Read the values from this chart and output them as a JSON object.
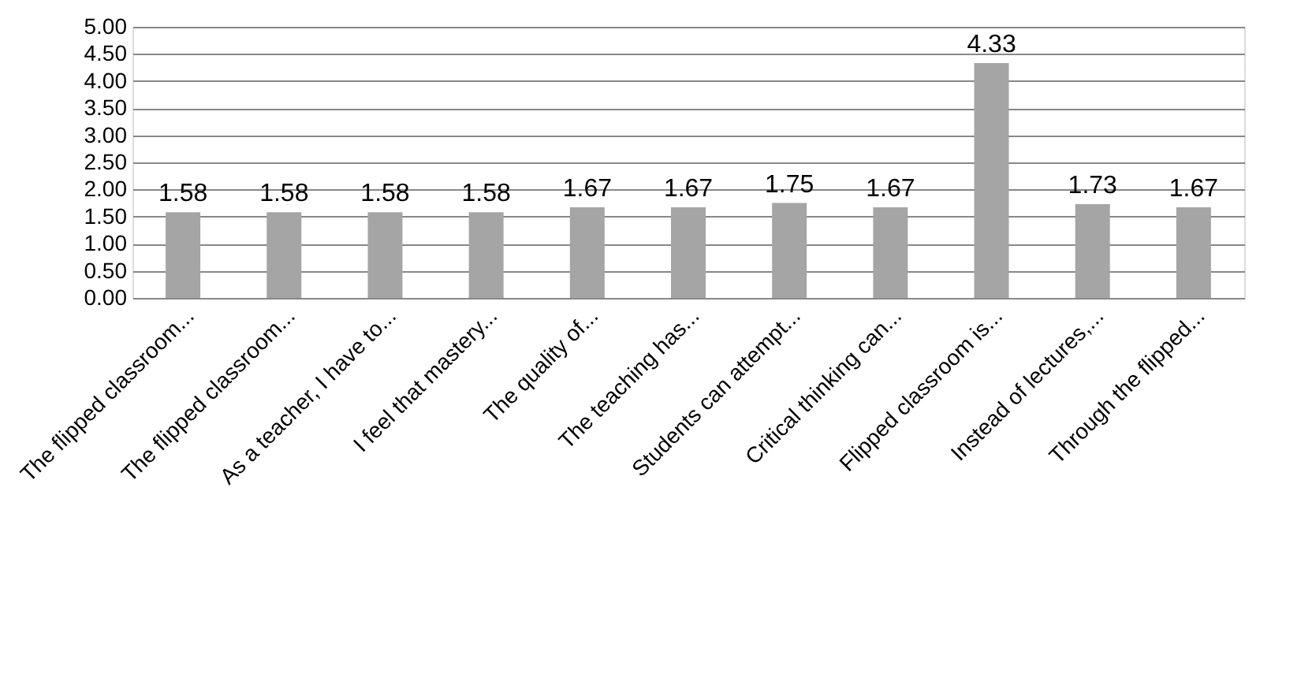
{
  "chart_data": {
    "type": "bar",
    "categories": [
      "The flipped classroom...",
      "The flipped classroom...",
      "As a teacher, I have to...",
      "I feel that mastery...",
      "The quality of...",
      "The teaching has...",
      "Students can attempt...",
      "Critical thinking can...",
      "Flipped classroom is...",
      "Instead of lectures,...",
      "Through the flipped..."
    ],
    "values": [
      1.58,
      1.58,
      1.58,
      1.58,
      1.67,
      1.67,
      1.75,
      1.67,
      4.33,
      1.73,
      1.67
    ],
    "color": "#a5a5a5",
    "ylim": [
      0,
      5
    ],
    "yticks": [
      {
        "value": 0,
        "label": "0.00"
      },
      {
        "value": 0.5,
        "label": "0.50"
      },
      {
        "value": 1,
        "label": "1.00"
      },
      {
        "value": 1.5,
        "label": "1.50"
      },
      {
        "value": 2,
        "label": "2.00"
      },
      {
        "value": 2.5,
        "label": "2.50"
      },
      {
        "value": 3,
        "label": "3.00"
      },
      {
        "value": 3.5,
        "label": "3.50"
      },
      {
        "value": 4,
        "label": "4.00"
      },
      {
        "value": 4.5,
        "label": "4.50"
      },
      {
        "value": 5,
        "label": "5.00"
      }
    ],
    "grid": "y",
    "data_labels": true
  }
}
